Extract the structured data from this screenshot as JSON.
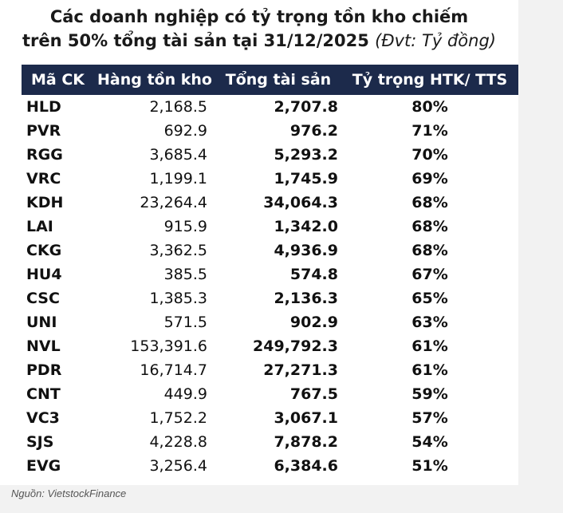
{
  "title": {
    "line1": "Các doanh nghiệp có tỷ trọng tồn kho chiếm",
    "line2_main": "trên 50% tổng tài sản tại 31/12/2025",
    "line2_unit": "(Đvt: Tỷ đồng)"
  },
  "table": {
    "headers": [
      "Mã CK",
      "Hàng tồn kho",
      "Tổng tài sản",
      "Tỷ trọng HTK/ TTS"
    ],
    "rows": [
      [
        "HLD",
        "2,168.5",
        "2,707.8",
        "80%"
      ],
      [
        "PVR",
        "692.9",
        "976.2",
        "71%"
      ],
      [
        "RGG",
        "3,685.4",
        "5,293.2",
        "70%"
      ],
      [
        "VRC",
        "1,199.1",
        "1,745.9",
        "69%"
      ],
      [
        "KDH",
        "23,264.4",
        "34,064.3",
        "68%"
      ],
      [
        "LAI",
        "915.9",
        "1,342.0",
        "68%"
      ],
      [
        "CKG",
        "3,362.5",
        "4,936.9",
        "68%"
      ],
      [
        "HU4",
        "385.5",
        "574.8",
        "67%"
      ],
      [
        "CSC",
        "1,385.3",
        "2,136.3",
        "65%"
      ],
      [
        "UNI",
        "571.5",
        "902.9",
        "63%"
      ],
      [
        "NVL",
        "153,391.6",
        "249,792.3",
        "61%"
      ],
      [
        "PDR",
        "16,714.7",
        "27,271.3",
        "61%"
      ],
      [
        "CNT",
        "449.9",
        "767.5",
        "59%"
      ],
      [
        "VC3",
        "1,752.2",
        "3,067.1",
        "57%"
      ],
      [
        "SJS",
        "4,228.8",
        "7,878.2",
        "54%"
      ],
      [
        "EVG",
        "3,256.4",
        "6,384.6",
        "51%"
      ]
    ]
  },
  "source": "Nguồn: VietstockFinance",
  "colors": {
    "header_bg": "#1c2a4b",
    "header_text": "#ffffff",
    "page_bg": "#f2f2f2"
  }
}
